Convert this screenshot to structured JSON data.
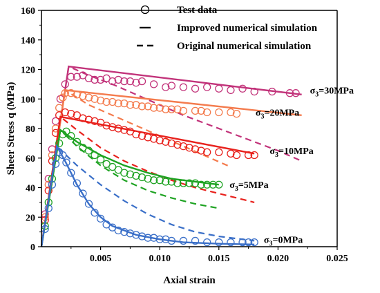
{
  "chart_data": {
    "type": "line",
    "xlabel": "Axial strain",
    "ylabel": "Sheer Stress q (MPa)",
    "xlim": [
      0,
      0.025
    ],
    "ylim": [
      0,
      160
    ],
    "xticks": [
      0.005,
      0.01,
      0.015,
      0.02,
      0.025
    ],
    "xtick_labels": [
      "0.005",
      "0.010",
      "0.015",
      "0.020",
      "0.025"
    ],
    "yticks": [
      0,
      20,
      40,
      60,
      80,
      100,
      120,
      140,
      160
    ],
    "ytick_labels": [
      "0",
      "20",
      "40",
      "60",
      "80",
      "100",
      "120",
      "140",
      "160"
    ],
    "grid": false,
    "legend_position": "top-right",
    "legend": [
      {
        "label": "Test data",
        "style": "circle"
      },
      {
        "label": "Improved numerical simulation",
        "style": "solid"
      },
      {
        "label": "Original numerical simulation",
        "style": "dashed"
      }
    ],
    "series": [
      {
        "annotation": "σ3=30MPa",
        "anno_main": "σ",
        "anno_sub": "3",
        "anno_rest": "=30MPa",
        "anno_at": [
          0.0227,
          106
        ],
        "color": "#C2337A",
        "improved": [
          [
            0,
            0
          ],
          [
            0.0023,
            122
          ],
          [
            0.022,
            103
          ]
        ],
        "original": [
          [
            0,
            0
          ],
          [
            0.0023,
            122
          ],
          [
            0.004,
            116
          ],
          [
            0.006,
            110
          ],
          [
            0.008,
            103
          ],
          [
            0.01,
            96
          ],
          [
            0.012,
            89
          ],
          [
            0.014,
            83
          ],
          [
            0.016,
            77
          ],
          [
            0.018,
            71
          ],
          [
            0.02,
            65
          ],
          [
            0.022,
            58
          ]
        ],
        "test": [
          [
            0.0003,
            22
          ],
          [
            0.0006,
            46
          ],
          [
            0.0009,
            66
          ],
          [
            0.0012,
            85
          ],
          [
            0.0016,
            100
          ],
          [
            0.002,
            110
          ],
          [
            0.0025,
            115
          ],
          [
            0.003,
            115
          ],
          [
            0.0035,
            116
          ],
          [
            0.004,
            114
          ],
          [
            0.0045,
            113
          ],
          [
            0.005,
            113
          ],
          [
            0.0055,
            114
          ],
          [
            0.006,
            112
          ],
          [
            0.0065,
            113
          ],
          [
            0.007,
            112
          ],
          [
            0.0075,
            112
          ],
          [
            0.008,
            111
          ],
          [
            0.0085,
            112
          ],
          [
            0.0095,
            110
          ],
          [
            0.0105,
            108
          ],
          [
            0.011,
            109
          ],
          [
            0.012,
            108
          ],
          [
            0.013,
            107
          ],
          [
            0.014,
            108
          ],
          [
            0.015,
            107
          ],
          [
            0.016,
            106
          ],
          [
            0.017,
            107
          ],
          [
            0.018,
            105
          ],
          [
            0.0195,
            105
          ],
          [
            0.021,
            104
          ],
          [
            0.0215,
            104
          ]
        ]
      },
      {
        "annotation": "σ3=20MPa",
        "anno_main": "σ",
        "anno_sub": "3",
        "anno_rest": "=20MPa",
        "anno_at": [
          0.0181,
          91
        ],
        "color": "#F47B4D",
        "improved": [
          [
            0,
            0
          ],
          [
            0.002,
            106
          ],
          [
            0.022,
            89
          ]
        ],
        "original": [
          [
            0,
            0
          ],
          [
            0.002,
            106
          ],
          [
            0.004,
            96
          ],
          [
            0.006,
            89
          ],
          [
            0.008,
            82
          ],
          [
            0.01,
            75
          ],
          [
            0.012,
            68
          ],
          [
            0.014,
            61
          ],
          [
            0.016,
            54
          ]
        ],
        "test": [
          [
            0.0003,
            20
          ],
          [
            0.0006,
            42
          ],
          [
            0.0009,
            62
          ],
          [
            0.0012,
            80
          ],
          [
            0.0015,
            94
          ],
          [
            0.0018,
            101
          ],
          [
            0.002,
            104
          ],
          [
            0.0025,
            104
          ],
          [
            0.003,
            103
          ],
          [
            0.0035,
            102
          ],
          [
            0.004,
            101
          ],
          [
            0.0045,
            100
          ],
          [
            0.005,
            99
          ],
          [
            0.0055,
            98
          ],
          [
            0.006,
            98
          ],
          [
            0.0065,
            97
          ],
          [
            0.007,
            97
          ],
          [
            0.0075,
            96
          ],
          [
            0.008,
            96
          ],
          [
            0.0085,
            95
          ],
          [
            0.009,
            95
          ],
          [
            0.0095,
            94
          ],
          [
            0.01,
            94
          ],
          [
            0.0105,
            93
          ],
          [
            0.011,
            93
          ],
          [
            0.0115,
            93
          ],
          [
            0.012,
            92
          ],
          [
            0.013,
            92
          ],
          [
            0.0135,
            92
          ],
          [
            0.014,
            91
          ],
          [
            0.015,
            91
          ],
          [
            0.016,
            91
          ],
          [
            0.0165,
            90
          ]
        ]
      },
      {
        "annotation": "σ3=10MPa",
        "anno_main": "σ",
        "anno_sub": "3",
        "anno_rest": "=10MPa",
        "anno_at": [
          0.0193,
          65
        ],
        "color": "#E8211C",
        "improved": [
          [
            0,
            0
          ],
          [
            0.0016,
            88
          ],
          [
            0.018,
            63
          ]
        ],
        "original": [
          [
            0,
            0
          ],
          [
            0.0016,
            88
          ],
          [
            0.003,
            79
          ],
          [
            0.005,
            67
          ],
          [
            0.007,
            58
          ],
          [
            0.009,
            51
          ],
          [
            0.011,
            45
          ],
          [
            0.013,
            40
          ],
          [
            0.015,
            36
          ],
          [
            0.017,
            32
          ],
          [
            0.018,
            30
          ]
        ],
        "test": [
          [
            0.0003,
            18
          ],
          [
            0.0006,
            38
          ],
          [
            0.0009,
            58
          ],
          [
            0.0012,
            77
          ],
          [
            0.0015,
            89
          ],
          [
            0.002,
            91
          ],
          [
            0.0025,
            90
          ],
          [
            0.003,
            89
          ],
          [
            0.0035,
            87
          ],
          [
            0.004,
            86
          ],
          [
            0.0045,
            85
          ],
          [
            0.005,
            84
          ],
          [
            0.0055,
            82
          ],
          [
            0.006,
            81
          ],
          [
            0.0065,
            80
          ],
          [
            0.007,
            79
          ],
          [
            0.0075,
            78
          ],
          [
            0.008,
            76
          ],
          [
            0.0085,
            75
          ],
          [
            0.009,
            74
          ],
          [
            0.0095,
            73
          ],
          [
            0.01,
            72
          ],
          [
            0.0105,
            71
          ],
          [
            0.011,
            70
          ],
          [
            0.0115,
            69
          ],
          [
            0.012,
            68
          ],
          [
            0.0125,
            67
          ],
          [
            0.013,
            66
          ],
          [
            0.0135,
            65
          ],
          [
            0.014,
            64
          ],
          [
            0.015,
            64
          ],
          [
            0.016,
            63
          ],
          [
            0.0165,
            62
          ],
          [
            0.0175,
            62
          ],
          [
            0.018,
            62
          ]
        ]
      },
      {
        "annotation": "σ3=5MPa",
        "anno_main": "σ",
        "anno_sub": "3",
        "anno_rest": "=5MPa",
        "anno_at": [
          0.0159,
          42
        ],
        "color": "#1FA323",
        "improved": [
          [
            0,
            0
          ],
          [
            0.0016,
            79
          ],
          [
            0.003,
            71
          ],
          [
            0.005,
            62
          ],
          [
            0.007,
            55
          ],
          [
            0.009,
            50
          ],
          [
            0.011,
            46
          ],
          [
            0.013,
            44
          ],
          [
            0.015,
            42
          ]
        ],
        "original": [
          [
            0,
            0
          ],
          [
            0.0016,
            79
          ],
          [
            0.003,
            68
          ],
          [
            0.005,
            55
          ],
          [
            0.007,
            45
          ],
          [
            0.009,
            38
          ],
          [
            0.011,
            33
          ],
          [
            0.013,
            29
          ],
          [
            0.015,
            26
          ]
        ],
        "test": [
          [
            0.0003,
            14
          ],
          [
            0.0006,
            30
          ],
          [
            0.0009,
            46
          ],
          [
            0.0012,
            60
          ],
          [
            0.0015,
            70
          ],
          [
            0.0018,
            76
          ],
          [
            0.0021,
            78
          ],
          [
            0.0025,
            75
          ],
          [
            0.003,
            71
          ],
          [
            0.0035,
            67
          ],
          [
            0.004,
            65
          ],
          [
            0.0045,
            62
          ],
          [
            0.005,
            59
          ],
          [
            0.0055,
            56
          ],
          [
            0.006,
            54
          ],
          [
            0.0065,
            52
          ],
          [
            0.007,
            50
          ],
          [
            0.0075,
            49
          ],
          [
            0.008,
            48
          ],
          [
            0.0085,
            47
          ],
          [
            0.009,
            46
          ],
          [
            0.0095,
            45
          ],
          [
            0.01,
            45
          ],
          [
            0.0105,
            44
          ],
          [
            0.011,
            44
          ],
          [
            0.0115,
            43
          ],
          [
            0.012,
            43
          ],
          [
            0.0125,
            43
          ],
          [
            0.013,
            43
          ],
          [
            0.0135,
            42
          ],
          [
            0.014,
            42
          ],
          [
            0.0145,
            42
          ],
          [
            0.015,
            42
          ]
        ]
      },
      {
        "annotation": "σ3=0MPa",
        "anno_main": "σ",
        "anno_sub": "3",
        "anno_rest": "=0MPa",
        "anno_at": [
          0.0188,
          5
        ],
        "color": "#3A6FC8",
        "improved": [
          [
            0,
            0
          ],
          [
            0.0013,
            68
          ],
          [
            0.002,
            58
          ],
          [
            0.003,
            42
          ],
          [
            0.004,
            29
          ],
          [
            0.005,
            20
          ],
          [
            0.006,
            14
          ],
          [
            0.008,
            8
          ],
          [
            0.01,
            5
          ],
          [
            0.012,
            3
          ],
          [
            0.015,
            2
          ],
          [
            0.018,
            1.5
          ]
        ],
        "original": [
          [
            0,
            0
          ],
          [
            0.0013,
            68
          ],
          [
            0.003,
            55
          ],
          [
            0.005,
            42
          ],
          [
            0.007,
            31
          ],
          [
            0.009,
            22
          ],
          [
            0.011,
            15
          ],
          [
            0.013,
            10
          ],
          [
            0.015,
            7
          ],
          [
            0.017,
            5
          ],
          [
            0.018,
            4
          ]
        ],
        "test": [
          [
            0.0003,
            12
          ],
          [
            0.0006,
            26
          ],
          [
            0.0009,
            42
          ],
          [
            0.0012,
            56
          ],
          [
            0.0015,
            64
          ],
          [
            0.0018,
            62
          ],
          [
            0.0021,
            57
          ],
          [
            0.0025,
            50
          ],
          [
            0.003,
            43
          ],
          [
            0.0035,
            36
          ],
          [
            0.004,
            29
          ],
          [
            0.0045,
            23
          ],
          [
            0.005,
            19
          ],
          [
            0.0055,
            15
          ],
          [
            0.006,
            13
          ],
          [
            0.0065,
            11
          ],
          [
            0.007,
            10
          ],
          [
            0.0075,
            9
          ],
          [
            0.008,
            8
          ],
          [
            0.0085,
            7
          ],
          [
            0.009,
            6
          ],
          [
            0.0095,
            6
          ],
          [
            0.01,
            5
          ],
          [
            0.0105,
            5
          ],
          [
            0.011,
            4
          ],
          [
            0.012,
            4
          ],
          [
            0.013,
            4
          ],
          [
            0.014,
            3
          ],
          [
            0.015,
            3
          ],
          [
            0.016,
            3
          ],
          [
            0.017,
            3
          ],
          [
            0.0175,
            3
          ],
          [
            0.018,
            3
          ]
        ]
      }
    ]
  }
}
